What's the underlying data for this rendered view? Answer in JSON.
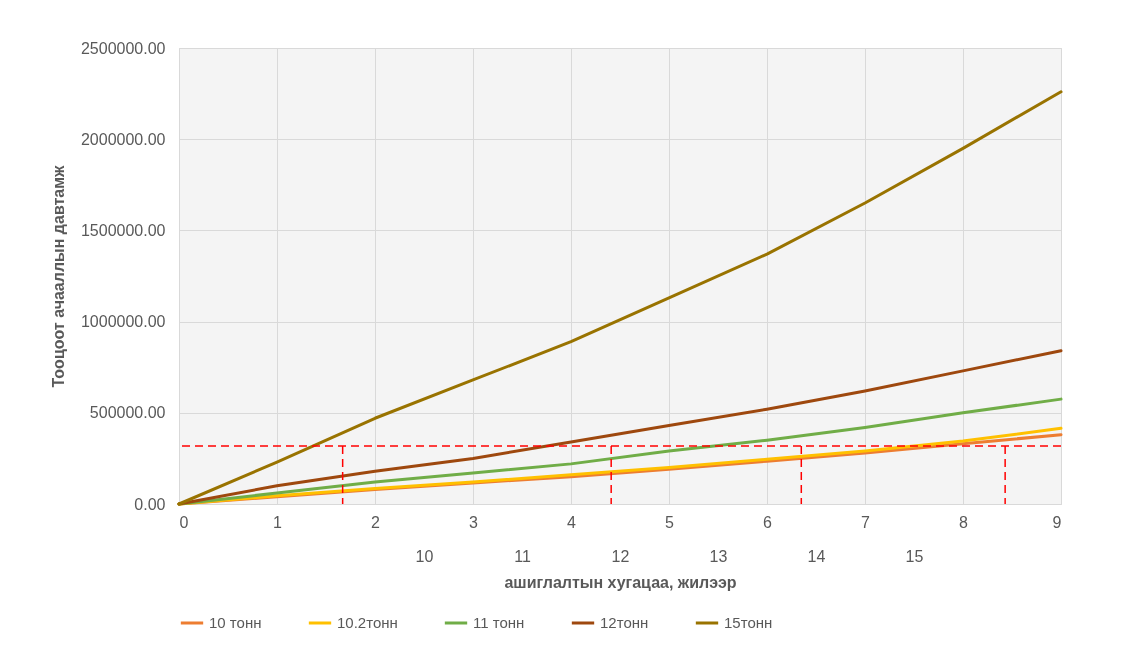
{
  "chart_data": {
    "type": "line",
    "xlabel": "ашиглалтын хугацаа, жилээр",
    "ylabel": "Тооцоот ачааллын давтамж",
    "x": [
      0,
      1,
      2,
      3,
      4,
      5,
      6,
      7,
      8,
      9
    ],
    "series": [
      {
        "name": "10 тонн",
        "color": "#ed7d31",
        "values": [
          0,
          40000,
          80000,
          115000,
          150000,
          190000,
          235000,
          280000,
          330000,
          380000
        ]
      },
      {
        "name": "10.2тонн",
        "color": "#ffc000",
        "values": [
          0,
          45000,
          85000,
          120000,
          160000,
          200000,
          245000,
          290000,
          345000,
          415000
        ]
      },
      {
        "name": "11 тонн",
        "color": "#70ad47",
        "values": [
          0,
          60000,
          120000,
          170000,
          220000,
          290000,
          350000,
          420000,
          500000,
          575000
        ]
      },
      {
        "name": "12тонн",
        "color": "#9e480e",
        "values": [
          0,
          100000,
          180000,
          250000,
          340000,
          430000,
          520000,
          620000,
          730000,
          840000
        ]
      },
      {
        "name": "15тонн",
        "color": "#997300",
        "values": [
          0,
          230000,
          470000,
          680000,
          890000,
          1130000,
          1370000,
          1650000,
          1950000,
          2260000
        ]
      }
    ],
    "xlim": [
      0,
      9
    ],
    "xticks": [
      0,
      1,
      2,
      3,
      4,
      5,
      6,
      7,
      8,
      9
    ],
    "x2lim": [
      7.5,
      16.5
    ],
    "x2ticks": [
      10,
      11,
      12,
      13,
      14,
      15
    ],
    "ylim": [
      0,
      2500000
    ],
    "yticks": [
      {
        "value": 0,
        "label": "0.00"
      },
      {
        "value": 500000,
        "label": "500000.00"
      },
      {
        "value": 1000000,
        "label": "1000000.00"
      },
      {
        "value": 1500000,
        "label": "1500000.00"
      },
      {
        "value": 2000000,
        "label": "2000000.00"
      },
      {
        "value": 2500000,
        "label": "2500000.00"
      }
    ],
    "ref_lines": [
      {
        "axis": "y",
        "value": 318000,
        "color": "#ff0000",
        "line_style": "dashed"
      },
      {
        "axis": "x",
        "value": 1.67,
        "color": "#ff0000",
        "line_style": "dashed"
      },
      {
        "axis": "x",
        "value": 4.41,
        "color": "#ff0000",
        "line_style": "dashed"
      },
      {
        "axis": "x",
        "value": 6.35,
        "color": "#ff0000",
        "line_style": "dashed"
      },
      {
        "axis": "x",
        "value": 8.43,
        "color": "#ff0000",
        "line_style": "dashed"
      }
    ],
    "grid": true,
    "legend": "bottom",
    "marker": "none",
    "line_style": "solid"
  }
}
